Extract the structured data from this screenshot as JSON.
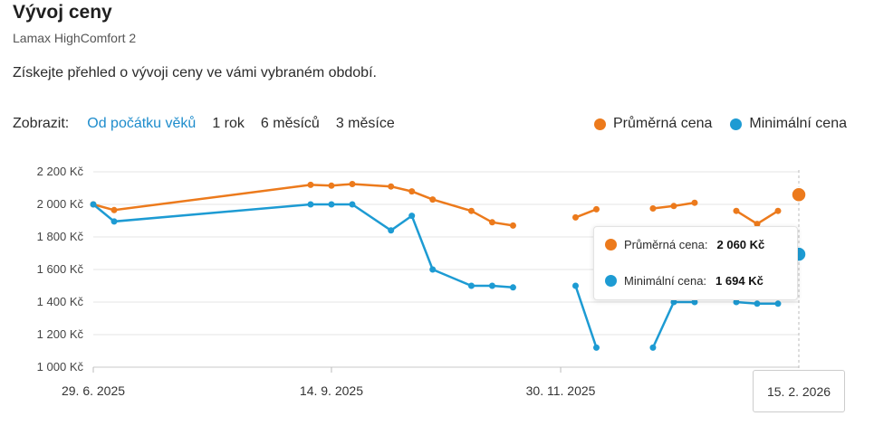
{
  "header": {
    "title": "Vývoj ceny",
    "subtitle": "Lamax HighComfort 2",
    "description": "Získejte přehled o vývoji ceny ve vámi vybraném období."
  },
  "controls": {
    "label": "Zobrazit:",
    "options": [
      "Od počátku věků",
      "1 rok",
      "6 měsíců",
      "3 měsíce"
    ],
    "active_index": 0
  },
  "colors": {
    "average": "#ec7a1c",
    "minimum": "#1d9bd3",
    "active_link": "#1d8ccc",
    "grid": "#e4e4e4"
  },
  "chart_data": {
    "type": "line",
    "x": [
      0,
      7,
      73,
      80,
      87,
      100,
      107,
      114,
      127,
      134,
      141,
      148,
      162,
      169,
      174,
      188,
      195,
      202,
      209,
      216,
      223,
      230
    ],
    "series": [
      {
        "name": "Průměrná cena",
        "values": [
          2000,
          1965,
          2120,
          2115,
          2125,
          2110,
          2080,
          2030,
          1960,
          1890,
          1870,
          null,
          1920,
          1970,
          null,
          1975,
          1990,
          2010,
          null,
          1960,
          1880,
          1960
        ]
      },
      {
        "name": "Minimální cena",
        "values": [
          2000,
          1895,
          2000,
          2000,
          2000,
          1840,
          1930,
          1600,
          1500,
          1500,
          1490,
          null,
          1500,
          1120,
          null,
          1120,
          1400,
          1400,
          null,
          1400,
          1390,
          1390
        ]
      }
    ],
    "end_point": {
      "x": 237,
      "average": 2060,
      "minimum": 1694
    },
    "x_ticks": [
      {
        "x": 0,
        "label": "29. 6. 2025"
      },
      {
        "x": 80,
        "label": "14. 9. 2025"
      },
      {
        "x": 157,
        "label": "30. 11. 2025"
      }
    ],
    "y_ticks": [
      {
        "v": 2200,
        "label": "2 200 Kč"
      },
      {
        "v": 2000,
        "label": "2 000 Kč"
      },
      {
        "v": 1800,
        "label": "1 800 Kč"
      },
      {
        "v": 1600,
        "label": "1 600 Kč"
      },
      {
        "v": 1400,
        "label": "1 400 Kč"
      },
      {
        "v": 1200,
        "label": "1 200 Kč"
      },
      {
        "v": 1000,
        "label": "1 000 Kč"
      }
    ],
    "ylim": [
      1000,
      2200
    ],
    "xlim": [
      0,
      237
    ],
    "legend": [
      "Průměrná cena",
      "Minimální cena"
    ],
    "legend_position": "top-right"
  },
  "tooltip": {
    "average_label": "Průměrná cena:",
    "average_value": "2 060 Kč",
    "minimum_label": "Minimální cena:",
    "minimum_value": "1 694 Kč",
    "date": "15. 2. 2026"
  }
}
